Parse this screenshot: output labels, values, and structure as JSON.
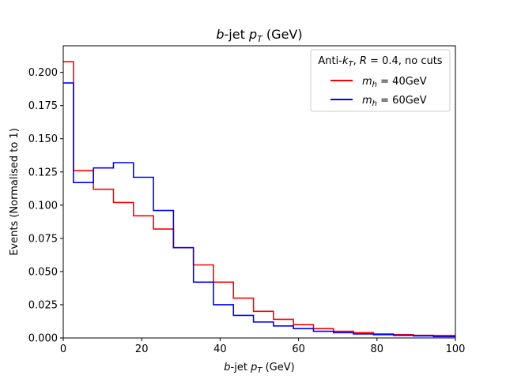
{
  "chart_data": {
    "type": "line",
    "drawstyle": "steps",
    "title": "b-jet p_T (GeV)",
    "xlabel": "b-jet p_T (GeV)",
    "ylabel": "Events (Normalised to 1)",
    "xlim": [
      0,
      100
    ],
    "ylim": [
      0,
      0.22
    ],
    "xticks": [
      "0",
      "20",
      "40",
      "60",
      "80",
      "100"
    ],
    "yticks": [
      "0.000",
      "0.025",
      "0.050",
      "0.075",
      "0.100",
      "0.125",
      "0.150",
      "0.175",
      "0.200"
    ],
    "bin_edges": [
      0,
      2.6,
      7.7,
      12.8,
      17.9,
      23.0,
      28.1,
      33.2,
      38.3,
      43.4,
      48.5,
      53.6,
      58.7,
      63.8,
      68.9,
      74.0,
      79.1,
      84.2,
      89.3,
      94.4,
      100
    ],
    "legend": {
      "title": "Anti-k_T, R = 0.4, no cuts",
      "placement": "top-right"
    },
    "series": [
      {
        "name": "m_h = 40GeV",
        "color": "#ff0000",
        "values": [
          0.208,
          0.126,
          0.112,
          0.102,
          0.092,
          0.082,
          0.068,
          0.055,
          0.042,
          0.03,
          0.02,
          0.014,
          0.01,
          0.007,
          0.005,
          0.004,
          0.003,
          0.0025,
          0.002,
          0.0018
        ]
      },
      {
        "name": "m_h = 60GeV",
        "color": "#0000ff",
        "values": [
          0.192,
          0.117,
          0.128,
          0.132,
          0.121,
          0.096,
          0.068,
          0.042,
          0.025,
          0.017,
          0.012,
          0.009,
          0.007,
          0.005,
          0.004,
          0.003,
          0.0025,
          0.002,
          0.0015,
          0.001
        ]
      }
    ]
  }
}
